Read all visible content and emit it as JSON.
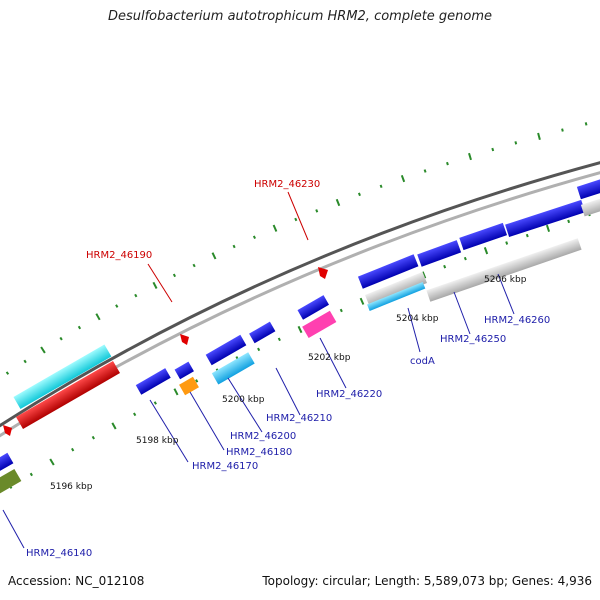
{
  "title": "Desulfobacterium autotrophicum HRM2, complete genome",
  "footer": {
    "accession": "Accession: NC_012108",
    "summary": "Topology: circular; Length: 5,589,073 bp; Genes: 4,936"
  },
  "colors": {
    "cds": "#1010dd",
    "highlight_label": "#cc0000",
    "normal_label": "#2020aa",
    "backbone": "#777777",
    "tick": "#2a8a2a"
  },
  "scale_labels": [
    "5196 kbp",
    "5198 kbp",
    "5200 kbp",
    "5202 kbp",
    "5204 kbp",
    "5206 kbp"
  ],
  "gene_labels": {
    "g46140": "HRM2_46140",
    "g46170": "HRM2_46170",
    "g46180": "HRM2_46180",
    "g46190": "HRM2_46190",
    "g46200": "HRM2_46200",
    "g46210": "HRM2_46210",
    "g46220": "HRM2_46220",
    "g46230": "HRM2_46230",
    "g46250": "HRM2_46250",
    "g46260": "HRM2_46260",
    "codA": "codA"
  }
}
